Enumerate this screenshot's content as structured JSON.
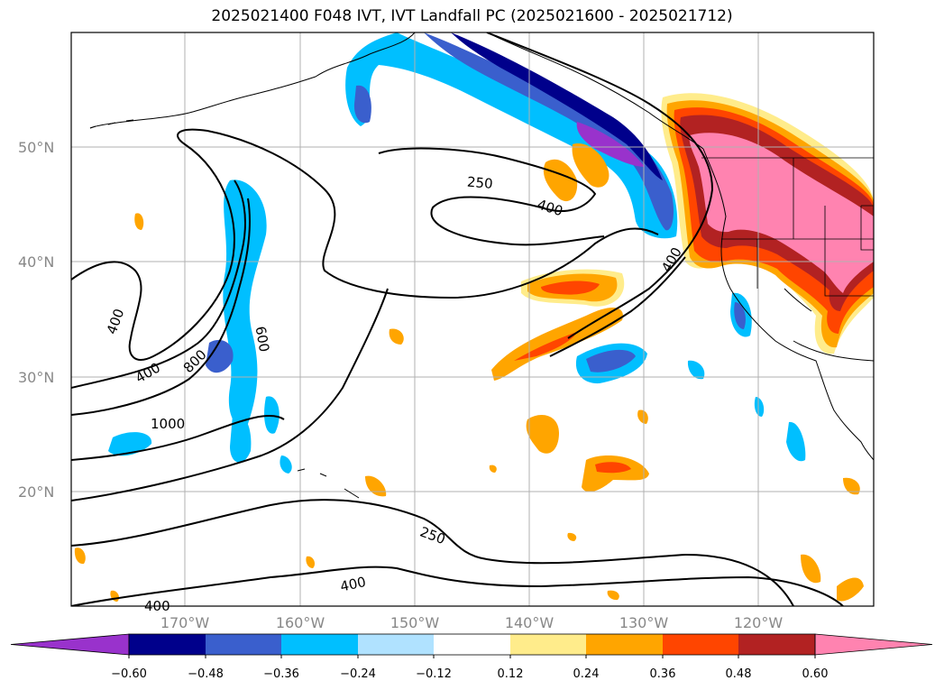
{
  "title": "2025021400 F048 IVT, IVT Landfall PC (2025021600 - 2025021712)",
  "lat_ticks": [
    "50°N",
    "40°N",
    "30°N",
    "20°N"
  ],
  "lon_ticks": [
    "170°W",
    "160°W",
    "150°W",
    "140°W",
    "130°W",
    "120°W"
  ],
  "colorbar": {
    "ticks": [
      "−0.60",
      "−0.48",
      "−0.36",
      "−0.24",
      "−0.12",
      "0.12",
      "0.24",
      "0.36",
      "0.48",
      "0.60"
    ],
    "colors": [
      "#9932cc",
      "#00008b",
      "#3a5fcd",
      "#00bfff",
      "#b0e2ff",
      "#ffffff",
      "#ffec8b",
      "#ffa500",
      "#ff4500",
      "#b22222",
      "#ff83b0"
    ]
  },
  "contour_labels": [
    "250",
    "400",
    "400",
    "600",
    "800",
    "1000",
    "400",
    "400",
    "250",
    "400",
    "400"
  ]
}
